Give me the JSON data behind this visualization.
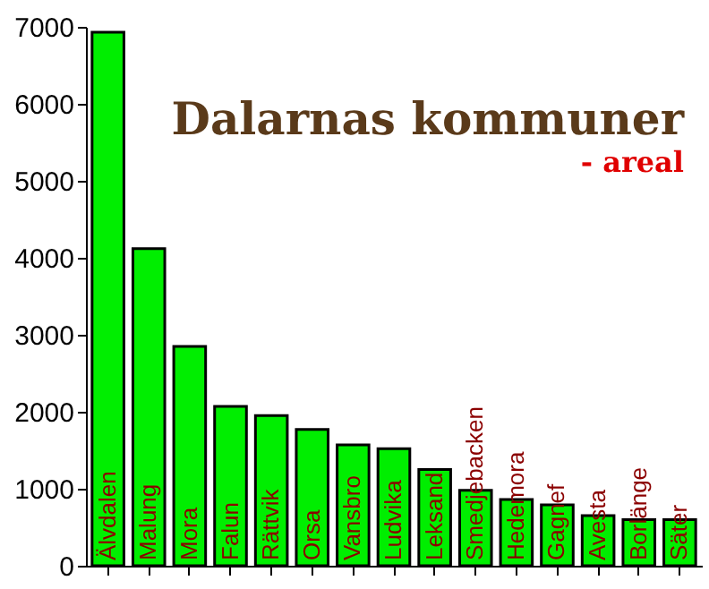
{
  "chart_data": {
    "type": "bar",
    "title": "Dalarnas kommuner",
    "subtitle": "- areal",
    "categories": [
      "Älvdalen",
      "Malung",
      "Mora",
      "Falun",
      "Rättvik",
      "Orsa",
      "Vansbro",
      "Ludvika",
      "Leksand",
      "Smedjebacken",
      "Hedemora",
      "Gagnef",
      "Avesta",
      "Borlänge",
      "Säter"
    ],
    "values": [
      6930,
      4120,
      2850,
      2070,
      1950,
      1770,
      1570,
      1520,
      1250,
      980,
      860,
      790,
      650,
      600,
      600
    ],
    "color": "#00ee00",
    "ylim": [
      0,
      7000
    ],
    "yticks": [
      0,
      1000,
      2000,
      3000,
      4000,
      5000,
      6000,
      7000
    ],
    "grid": false
  }
}
